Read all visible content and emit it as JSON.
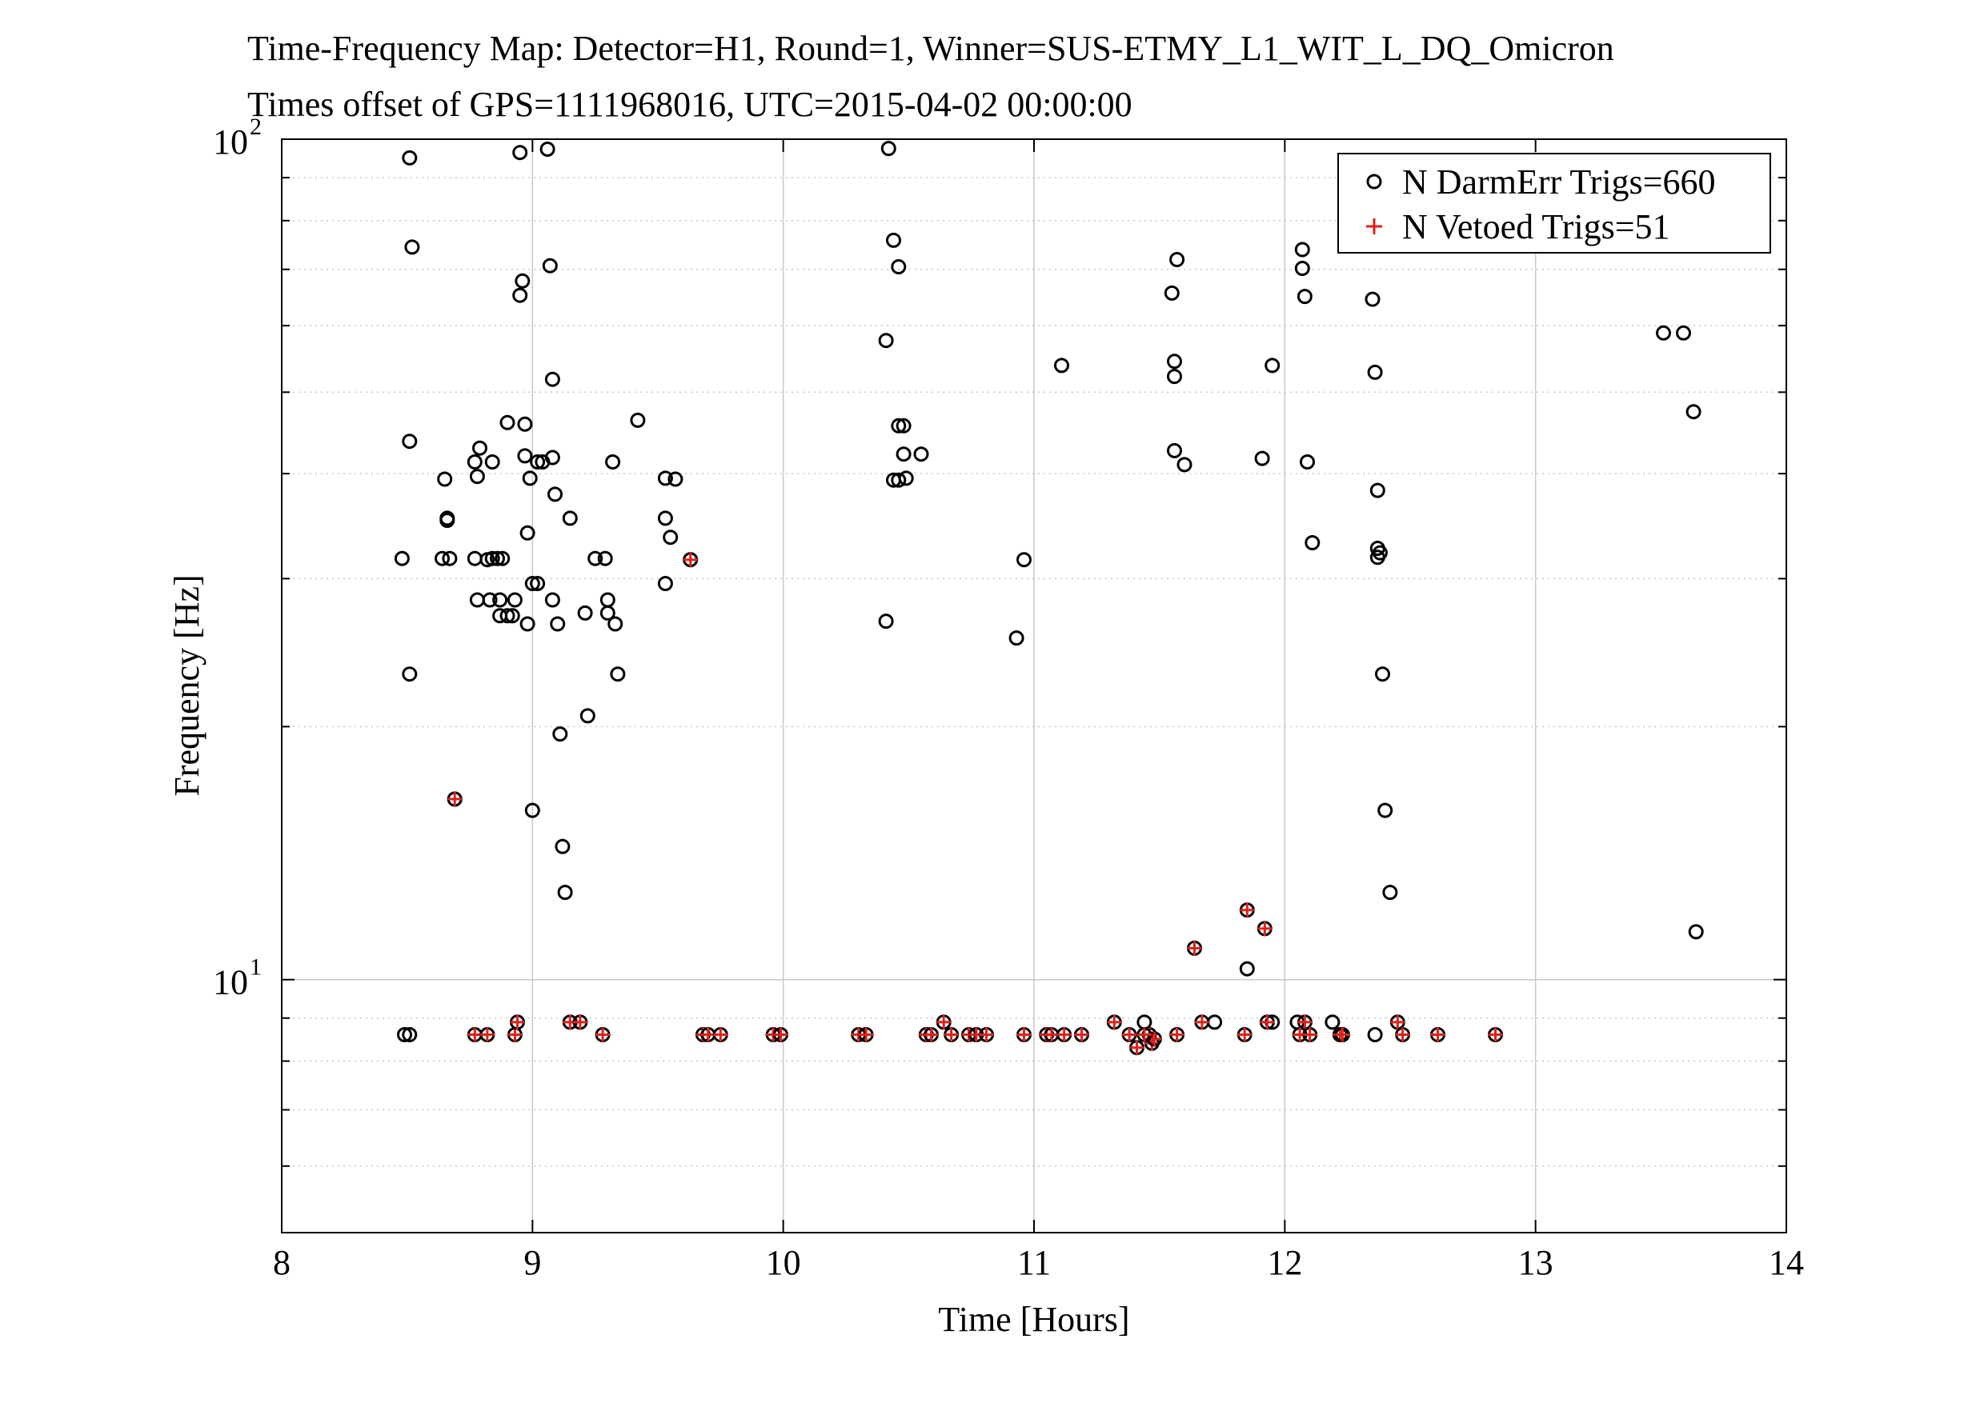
{
  "chart_data": {
    "type": "scatter",
    "title": "Time-Frequency Map: Detector=H1, Round=1, Winner=SUS-ETMY_L1_WIT_L_DQ_Omicron",
    "subtitle": "Times offset of GPS=1111968016, UTC=2015-04-02 00:00:00",
    "xlabel": "Time [Hours]",
    "ylabel": "Frequency [Hz]",
    "xlim": [
      8,
      14
    ],
    "ylim": [
      5,
      100
    ],
    "yscale": "log",
    "xticks": [
      8,
      9,
      10,
      11,
      12,
      13,
      14
    ],
    "xtick_labels": [
      "8",
      "9",
      "10",
      "11",
      "12",
      "13",
      "14"
    ],
    "yticks": [
      {
        "base": "10",
        "exp": "1",
        "value": 10
      },
      {
        "base": "10",
        "exp": "2",
        "value": 100
      }
    ],
    "grid": true,
    "legend_position": "top-right",
    "colors": {
      "darm": "#000000",
      "vetoed": "#e0201b",
      "grid": "#c8c8c8"
    },
    "series": [
      {
        "name": "N DarmErr Trigs=660",
        "marker": "circle",
        "color": "#000000",
        "points": [
          [
            8.51,
            95.0
          ],
          [
            8.52,
            74.4
          ],
          [
            8.51,
            43.7
          ],
          [
            8.48,
            31.7
          ],
          [
            8.51,
            23.1
          ],
          [
            8.49,
            8.6
          ],
          [
            8.51,
            8.6
          ],
          [
            8.69,
            16.4
          ],
          [
            8.64,
            31.7
          ],
          [
            8.67,
            31.7
          ],
          [
            8.66,
            35.2
          ],
          [
            8.66,
            35.4
          ],
          [
            8.65,
            39.4
          ],
          [
            8.77,
            41.3
          ],
          [
            8.79,
            42.9
          ],
          [
            8.78,
            39.7
          ],
          [
            8.77,
            31.7
          ],
          [
            8.78,
            28.3
          ],
          [
            8.82,
            31.6
          ],
          [
            8.84,
            31.7
          ],
          [
            8.86,
            31.7
          ],
          [
            8.88,
            31.7
          ],
          [
            8.83,
            28.3
          ],
          [
            8.84,
            41.3
          ],
          [
            8.87,
            27.1
          ],
          [
            8.9,
            27.1
          ],
          [
            8.93,
            28.3
          ],
          [
            8.87,
            28.3
          ],
          [
            8.9,
            46.0
          ],
          [
            8.92,
            27.1
          ],
          [
            8.95,
            96.4
          ],
          [
            8.96,
            67.8
          ],
          [
            8.95,
            65.2
          ],
          [
            8.97,
            45.8
          ],
          [
            8.97,
            42.0
          ],
          [
            8.99,
            39.5
          ],
          [
            8.98,
            34.0
          ],
          [
            8.98,
            26.5
          ],
          [
            9.0,
            29.6
          ],
          [
            9.02,
            29.6
          ],
          [
            9.02,
            41.3
          ],
          [
            9.04,
            41.3
          ],
          [
            9.06,
            97.3
          ],
          [
            9.07,
            70.7
          ],
          [
            9.08,
            51.8
          ],
          [
            9.08,
            41.8
          ],
          [
            9.08,
            28.3
          ],
          [
            9.09,
            37.8
          ],
          [
            9.1,
            26.5
          ],
          [
            9.11,
            19.6
          ],
          [
            9.12,
            14.4
          ],
          [
            9.13,
            12.7
          ],
          [
            9.0,
            15.9
          ],
          [
            9.15,
            35.4
          ],
          [
            9.21,
            27.3
          ],
          [
            9.22,
            20.6
          ],
          [
            9.25,
            31.7
          ],
          [
            9.29,
            31.7
          ],
          [
            9.3,
            28.3
          ],
          [
            9.3,
            27.3
          ],
          [
            9.32,
            41.3
          ],
          [
            9.33,
            26.5
          ],
          [
            9.34,
            23.1
          ],
          [
            9.42,
            46.3
          ],
          [
            9.53,
            39.5
          ],
          [
            9.57,
            39.4
          ],
          [
            9.53,
            35.4
          ],
          [
            9.55,
            33.6
          ],
          [
            9.53,
            29.6
          ],
          [
            9.63,
            31.6
          ],
          [
            10.42,
            97.5
          ],
          [
            10.44,
            75.8
          ],
          [
            10.46,
            70.5
          ],
          [
            10.41,
            57.6
          ],
          [
            10.46,
            45.6
          ],
          [
            10.48,
            45.6
          ],
          [
            10.48,
            42.2
          ],
          [
            10.55,
            42.2
          ],
          [
            10.44,
            39.3
          ],
          [
            10.46,
            39.3
          ],
          [
            10.49,
            39.5
          ],
          [
            10.41,
            26.7
          ],
          [
            10.93,
            25.5
          ],
          [
            10.96,
            31.6
          ],
          [
            11.11,
            53.8
          ],
          [
            11.55,
            65.6
          ],
          [
            11.57,
            71.9
          ],
          [
            11.56,
            54.4
          ],
          [
            11.56,
            52.2
          ],
          [
            11.56,
            42.6
          ],
          [
            11.6,
            41.0
          ],
          [
            11.91,
            41.7
          ],
          [
            11.95,
            53.8
          ],
          [
            11.85,
            10.3
          ],
          [
            12.07,
            73.9
          ],
          [
            12.07,
            70.2
          ],
          [
            12.08,
            65.0
          ],
          [
            12.09,
            41.3
          ],
          [
            12.11,
            33.1
          ],
          [
            12.35,
            64.5
          ],
          [
            12.36,
            52.8
          ],
          [
            12.37,
            38.2
          ],
          [
            12.37,
            32.6
          ],
          [
            12.38,
            32.2
          ],
          [
            12.37,
            31.8
          ],
          [
            12.39,
            23.1
          ],
          [
            12.4,
            15.9
          ],
          [
            12.42,
            12.7
          ],
          [
            13.51,
            58.8
          ],
          [
            13.59,
            58.8
          ],
          [
            13.63,
            47.4
          ],
          [
            13.64,
            11.4
          ],
          [
            11.44,
            8.9
          ],
          [
            11.72,
            8.9
          ],
          [
            12.05,
            8.9
          ],
          [
            12.19,
            8.9
          ],
          [
            12.36,
            8.6
          ],
          [
            11.95,
            8.9
          ]
        ]
      },
      {
        "name": "N Vetoed Trigs=51",
        "marker": "plus",
        "color": "#e0201b",
        "points": [
          [
            8.69,
            16.4
          ],
          [
            9.63,
            31.6
          ],
          [
            11.64,
            10.9
          ],
          [
            11.85,
            12.1
          ],
          [
            11.92,
            11.5
          ],
          [
            8.77,
            8.6
          ],
          [
            8.82,
            8.6
          ],
          [
            8.93,
            8.6
          ],
          [
            8.94,
            8.9
          ],
          [
            9.15,
            8.9
          ],
          [
            9.19,
            8.9
          ],
          [
            9.28,
            8.6
          ],
          [
            9.68,
            8.6
          ],
          [
            9.7,
            8.6
          ],
          [
            9.75,
            8.6
          ],
          [
            9.96,
            8.6
          ],
          [
            9.99,
            8.6
          ],
          [
            10.3,
            8.6
          ],
          [
            10.33,
            8.6
          ],
          [
            10.57,
            8.6
          ],
          [
            10.59,
            8.6
          ],
          [
            10.64,
            8.9
          ],
          [
            10.67,
            8.6
          ],
          [
            10.74,
            8.6
          ],
          [
            10.77,
            8.6
          ],
          [
            10.81,
            8.6
          ],
          [
            10.96,
            8.6
          ],
          [
            11.05,
            8.6
          ],
          [
            11.07,
            8.6
          ],
          [
            11.12,
            8.6
          ],
          [
            11.19,
            8.6
          ],
          [
            11.32,
            8.9
          ],
          [
            11.38,
            8.6
          ],
          [
            11.41,
            8.3
          ],
          [
            11.46,
            8.6
          ],
          [
            11.47,
            8.4
          ],
          [
            11.57,
            8.6
          ],
          [
            11.67,
            8.9
          ],
          [
            11.84,
            8.6
          ],
          [
            11.93,
            8.9
          ],
          [
            12.08,
            8.9
          ],
          [
            12.06,
            8.6
          ],
          [
            12.1,
            8.6
          ],
          [
            12.22,
            8.6
          ],
          [
            12.23,
            8.6
          ],
          [
            12.45,
            8.9
          ],
          [
            12.47,
            8.6
          ],
          [
            12.61,
            8.6
          ],
          [
            12.84,
            8.6
          ],
          [
            11.48,
            8.5
          ],
          [
            11.44,
            8.6
          ]
        ]
      }
    ]
  }
}
